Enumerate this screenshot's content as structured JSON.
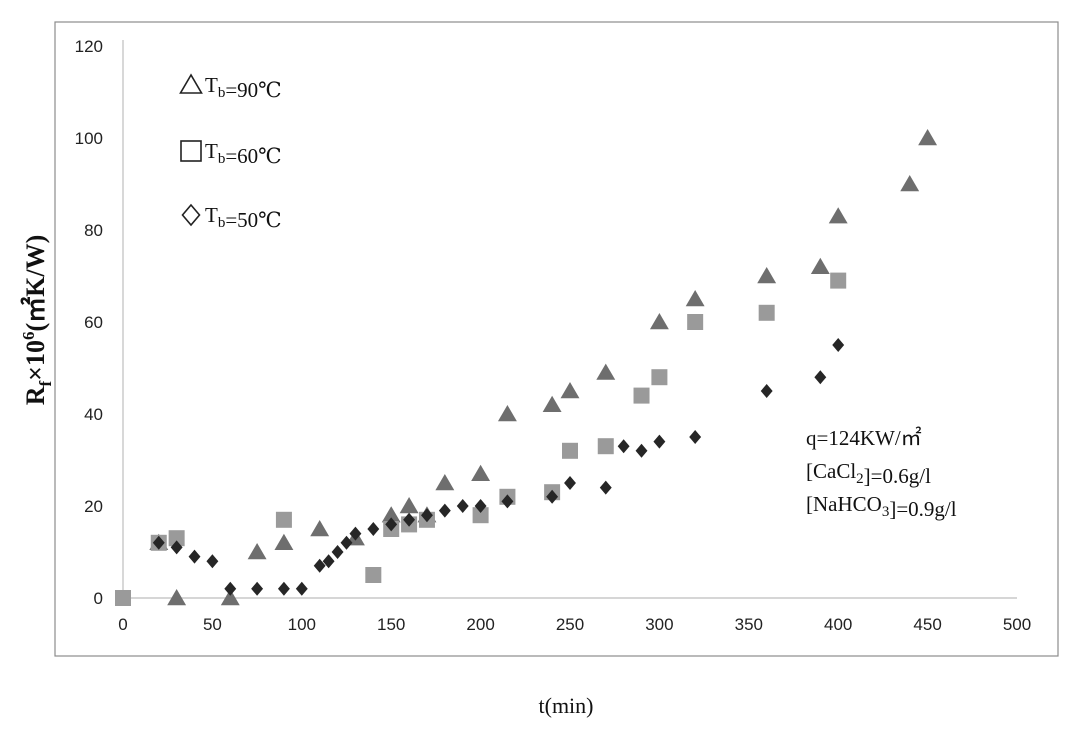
{
  "chart_data": {
    "type": "scatter",
    "xlabel": "t(min)",
    "ylabel": {
      "main": "R",
      "sub": "f",
      "mid": "×10",
      "sup": "6",
      "unit": "(㎡K/W)"
    },
    "xlim": [
      0,
      500
    ],
    "ylim": [
      0,
      120
    ],
    "x_ticks": [
      0,
      50,
      100,
      150,
      200,
      250,
      300,
      350,
      400,
      450,
      500
    ],
    "y_ticks": [
      0,
      20,
      40,
      60,
      80,
      100,
      120
    ],
    "grid": false,
    "legend_position": "top-left",
    "series": [
      {
        "name": {
          "main": "T",
          "sub": "b",
          "rest": "=90℃"
        },
        "marker": "triangle",
        "legend_marker": "open-triangle",
        "color": "#6e6e6e",
        "points": [
          [
            20,
            12
          ],
          [
            30,
            0
          ],
          [
            60,
            0
          ],
          [
            75,
            10
          ],
          [
            90,
            12
          ],
          [
            110,
            15
          ],
          [
            130,
            13
          ],
          [
            150,
            18
          ],
          [
            160,
            20
          ],
          [
            170,
            18
          ],
          [
            180,
            25
          ],
          [
            200,
            27
          ],
          [
            215,
            40
          ],
          [
            240,
            42
          ],
          [
            250,
            45
          ],
          [
            270,
            49
          ],
          [
            300,
            60
          ],
          [
            320,
            65
          ],
          [
            360,
            70
          ],
          [
            390,
            72
          ],
          [
            400,
            83
          ],
          [
            440,
            90
          ],
          [
            450,
            100
          ]
        ]
      },
      {
        "name": {
          "main": "T",
          "sub": "b",
          "rest": "=60℃"
        },
        "marker": "square",
        "legend_marker": "open-square",
        "color": "#9a9a9a",
        "points": [
          [
            0,
            0
          ],
          [
            20,
            12
          ],
          [
            30,
            13
          ],
          [
            90,
            17
          ],
          [
            140,
            5
          ],
          [
            150,
            15
          ],
          [
            160,
            16
          ],
          [
            170,
            17
          ],
          [
            200,
            18
          ],
          [
            215,
            22
          ],
          [
            240,
            23
          ],
          [
            250,
            32
          ],
          [
            270,
            33
          ],
          [
            290,
            44
          ],
          [
            300,
            48
          ],
          [
            320,
            60
          ],
          [
            360,
            62
          ],
          [
            400,
            69
          ]
        ]
      },
      {
        "name": {
          "main": "T",
          "sub": "b",
          "rest": "=50℃"
        },
        "marker": "diamond",
        "legend_marker": "open-diamond",
        "color": "#262626",
        "points": [
          [
            20,
            12
          ],
          [
            30,
            11
          ],
          [
            40,
            9
          ],
          [
            50,
            8
          ],
          [
            60,
            2
          ],
          [
            75,
            2
          ],
          [
            90,
            2
          ],
          [
            100,
            2
          ],
          [
            110,
            7
          ],
          [
            115,
            8
          ],
          [
            120,
            10
          ],
          [
            125,
            12
          ],
          [
            130,
            14
          ],
          [
            140,
            15
          ],
          [
            150,
            16
          ],
          [
            160,
            17
          ],
          [
            170,
            18
          ],
          [
            180,
            19
          ],
          [
            190,
            20
          ],
          [
            200,
            20
          ],
          [
            215,
            21
          ],
          [
            240,
            22
          ],
          [
            250,
            25
          ],
          [
            270,
            24
          ],
          [
            280,
            33
          ],
          [
            290,
            32
          ],
          [
            300,
            34
          ],
          [
            320,
            35
          ],
          [
            360,
            45
          ],
          [
            390,
            48
          ],
          [
            400,
            55
          ]
        ]
      }
    ],
    "annotations": [
      {
        "parts": [
          {
            "t": "q=124KW/㎡"
          }
        ]
      },
      {
        "parts": [
          {
            "t": "[CaCl"
          },
          {
            "t": "2",
            "sub": true
          },
          {
            "t": "]=0.6g/l"
          }
        ]
      },
      {
        "parts": [
          {
            "t": "[NaHCO"
          },
          {
            "t": "3",
            "sub": true
          },
          {
            "t": "]=0.9g/l"
          }
        ]
      }
    ]
  }
}
